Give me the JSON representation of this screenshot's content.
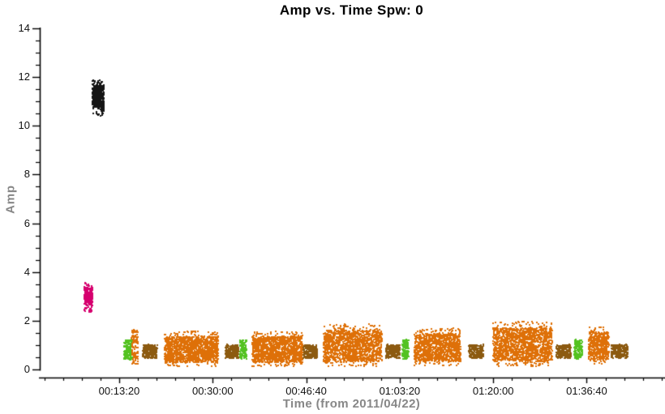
{
  "chart_data": {
    "type": "scatter",
    "title": "Amp vs. Time Spw: 0",
    "xlabel": "Time (from 2011/04/22)",
    "ylabel": "Amp",
    "ylim": [
      0,
      14
    ],
    "xlim_seconds": [
      -50,
      6620
    ],
    "grid": false,
    "legend": "none",
    "marker_size_px": 2,
    "y_major_ticks": [
      0,
      2,
      4,
      6,
      8,
      10,
      12,
      14
    ],
    "y_minor_step": 0.5,
    "x_minor_step_seconds": 200,
    "x_major_ticks": [
      {
        "seconds": 800,
        "label": "00:13:20"
      },
      {
        "seconds": 1800,
        "label": "00:30:00"
      },
      {
        "seconds": 2800,
        "label": "00:46:40"
      },
      {
        "seconds": 3800,
        "label": "01:03:20"
      },
      {
        "seconds": 4800,
        "label": "01:20:00"
      },
      {
        "seconds": 5800,
        "label": "01:36:40"
      }
    ],
    "colors": {
      "black": "#151515",
      "magenta": "#d6006e",
      "orange": "#de7008",
      "green": "#53c221",
      "brown": "#8c5a10",
      "axis": "#000000",
      "label_gray": "#878787"
    },
    "clusters": [
      {
        "color": "magenta",
        "t0": 418,
        "t1": 505,
        "amp_min": 2.38,
        "amp_max": 3.58,
        "n": 300,
        "profile": "streak"
      },
      {
        "color": "black",
        "t0": 505,
        "t1": 627,
        "amp_min": 10.45,
        "amp_max": 11.9,
        "n": 430,
        "profile": "streak"
      },
      {
        "color": "green",
        "t0": 843,
        "t1": 930,
        "amp_min": 0.42,
        "amp_max": 1.25,
        "n": 150,
        "profile": "blob"
      },
      {
        "color": "orange",
        "t0": 925,
        "t1": 992,
        "amp_min": 0.25,
        "amp_max": 1.65,
        "n": 110,
        "profile": "blob"
      },
      {
        "color": "brown",
        "t0": 1043,
        "t1": 1199,
        "amp_min": 0.5,
        "amp_max": 1.05,
        "n": 250,
        "profile": "blob"
      },
      {
        "color": "orange",
        "t0": 1277,
        "t1": 1850,
        "amp_min": 0.15,
        "amp_max": 1.6,
        "n": 1400,
        "profile": "block"
      },
      {
        "color": "brown",
        "t0": 1928,
        "t1": 2066,
        "amp_min": 0.5,
        "amp_max": 1.05,
        "n": 240,
        "profile": "blob"
      },
      {
        "color": "green",
        "t0": 2083,
        "t1": 2153,
        "amp_min": 0.45,
        "amp_max": 1.25,
        "n": 140,
        "profile": "blob"
      },
      {
        "color": "orange",
        "t0": 2214,
        "t1": 2752,
        "amp_min": 0.15,
        "amp_max": 1.6,
        "n": 1300,
        "profile": "block"
      },
      {
        "color": "brown",
        "t0": 2760,
        "t1": 2908,
        "amp_min": 0.5,
        "amp_max": 1.05,
        "n": 240,
        "profile": "blob"
      },
      {
        "color": "orange",
        "t0": 2977,
        "t1": 3602,
        "amp_min": 0.15,
        "amp_max": 1.9,
        "n": 1500,
        "profile": "block"
      },
      {
        "color": "brown",
        "t0": 3645,
        "t1": 3793,
        "amp_min": 0.5,
        "amp_max": 1.05,
        "n": 240,
        "profile": "blob"
      },
      {
        "color": "green",
        "t0": 3818,
        "t1": 3888,
        "amp_min": 0.45,
        "amp_max": 1.25,
        "n": 140,
        "profile": "blob"
      },
      {
        "color": "orange",
        "t0": 3948,
        "t1": 4443,
        "amp_min": 0.18,
        "amp_max": 1.72,
        "n": 1200,
        "profile": "block"
      },
      {
        "color": "brown",
        "t0": 4530,
        "t1": 4686,
        "amp_min": 0.5,
        "amp_max": 1.05,
        "n": 240,
        "profile": "blob"
      },
      {
        "color": "orange",
        "t0": 4790,
        "t1": 5423,
        "amp_min": 0.15,
        "amp_max": 2.0,
        "n": 1600,
        "profile": "block"
      },
      {
        "color": "brown",
        "t0": 5466,
        "t1": 5622,
        "amp_min": 0.5,
        "amp_max": 1.05,
        "n": 240,
        "profile": "blob"
      },
      {
        "color": "green",
        "t0": 5657,
        "t1": 5744,
        "amp_min": 0.45,
        "amp_max": 1.25,
        "n": 140,
        "profile": "blob"
      },
      {
        "color": "orange",
        "t0": 5813,
        "t1": 6030,
        "amp_min": 0.25,
        "amp_max": 1.8,
        "n": 520,
        "profile": "block"
      },
      {
        "color": "brown",
        "t0": 6056,
        "t1": 6229,
        "amp_min": 0.5,
        "amp_max": 1.05,
        "n": 250,
        "profile": "blob"
      }
    ]
  }
}
